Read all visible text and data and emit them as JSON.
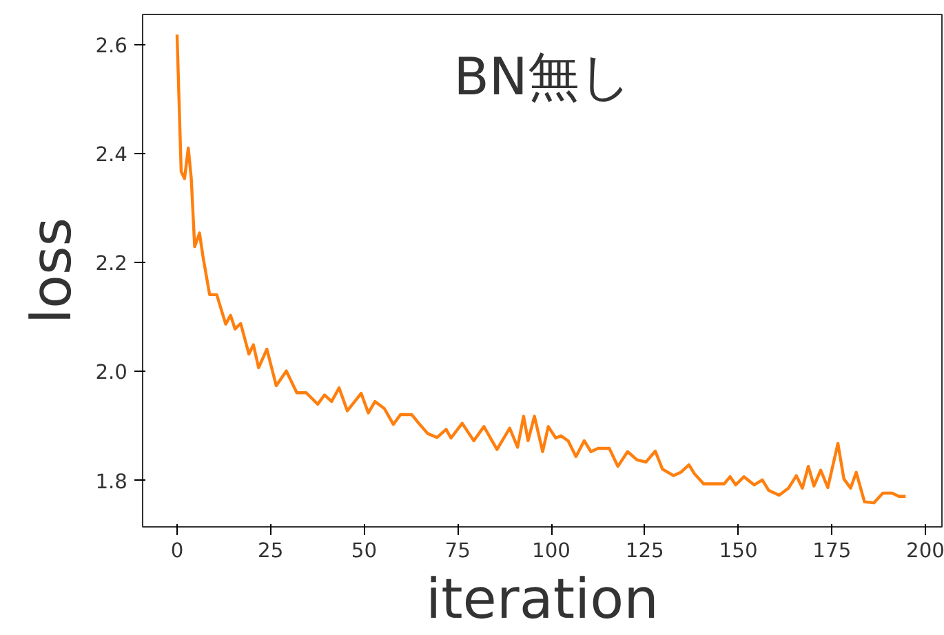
{
  "chart_data": {
    "type": "line",
    "title": "BN無し",
    "xlabel": "iteration",
    "ylabel": "loss",
    "x": [
      0,
      1.1,
      2,
      3,
      3.8,
      4.7,
      6,
      6.9,
      8.7,
      10.6,
      13,
      14.3,
      15.5,
      17,
      19.2,
      20.4,
      21.8,
      24,
      26.5,
      29.2,
      32,
      34.5,
      37.6,
      39.4,
      41.3,
      43.3,
      45.5,
      49.2,
      51.1,
      52.9,
      55.4,
      57.8,
      59.7,
      62.7,
      64.6,
      67,
      69.5,
      71.9,
      73.2,
      76.2,
      79.3,
      82,
      85.5,
      88.9,
      91,
      92.6,
      93.8,
      95.5,
      97.7,
      99.2,
      101.2,
      102.6,
      104.5,
      106.6,
      108.8,
      110.6,
      112.5,
      115.5,
      117.8,
      120.4,
      122.9,
      125.3,
      127.8,
      129.7,
      132.7,
      134.6,
      136.8,
      138.2,
      140.7,
      146.2,
      147.8,
      149.3,
      151.5,
      154.2,
      156.4,
      158.1,
      160.9,
      163.4,
      165.5,
      167.1,
      168.7,
      170.2,
      172,
      173.9,
      176.6,
      178.2,
      180,
      181.5,
      183.7,
      186.2,
      188.6,
      191.1,
      192.9,
      194.7
    ],
    "series": [
      {
        "color": "#ff7f0e",
        "values": [
          2.618,
          2.367,
          2.354,
          2.41,
          2.354,
          2.229,
          2.254,
          2.212,
          2.141,
          2.141,
          2.087,
          2.103,
          2.078,
          2.088,
          2.032,
          2.049,
          2.007,
          2.041,
          1.974,
          2.001,
          1.961,
          1.961,
          1.94,
          1.957,
          1.945,
          1.97,
          1.928,
          1.96,
          1.924,
          1.945,
          1.932,
          1.903,
          1.921,
          1.921,
          1.905,
          1.886,
          1.879,
          1.894,
          1.878,
          1.905,
          1.873,
          1.899,
          1.857,
          1.896,
          1.861,
          1.918,
          1.873,
          1.918,
          1.853,
          1.899,
          1.878,
          1.882,
          1.873,
          1.844,
          1.873,
          1.853,
          1.859,
          1.859,
          1.826,
          1.853,
          1.838,
          1.834,
          1.854,
          1.821,
          1.809,
          1.815,
          1.829,
          1.813,
          1.794,
          1.794,
          1.807,
          1.792,
          1.807,
          1.792,
          1.801,
          1.782,
          1.773,
          1.786,
          1.809,
          1.786,
          1.826,
          1.79,
          1.819,
          1.787,
          1.868,
          1.803,
          1.786,
          1.815,
          1.761,
          1.759,
          1.777,
          1.777,
          1.771,
          1.771
        ]
      }
    ],
    "xlim": [
      -9.2,
      204.4
    ],
    "ylim": [
      1.715,
      2.655
    ],
    "xticks": [
      0,
      25,
      50,
      75,
      100,
      125,
      150,
      175,
      200
    ],
    "yticks": [
      {
        "value": 1.8,
        "label": "1.8"
      },
      {
        "value": 2.0,
        "label": "2.0"
      },
      {
        "value": 2.2,
        "label": "2.2"
      },
      {
        "value": 2.4,
        "label": "2.4"
      },
      {
        "value": 2.6,
        "label": "2.6"
      }
    ],
    "grid": false,
    "line_style": "solid",
    "marker": "none"
  }
}
